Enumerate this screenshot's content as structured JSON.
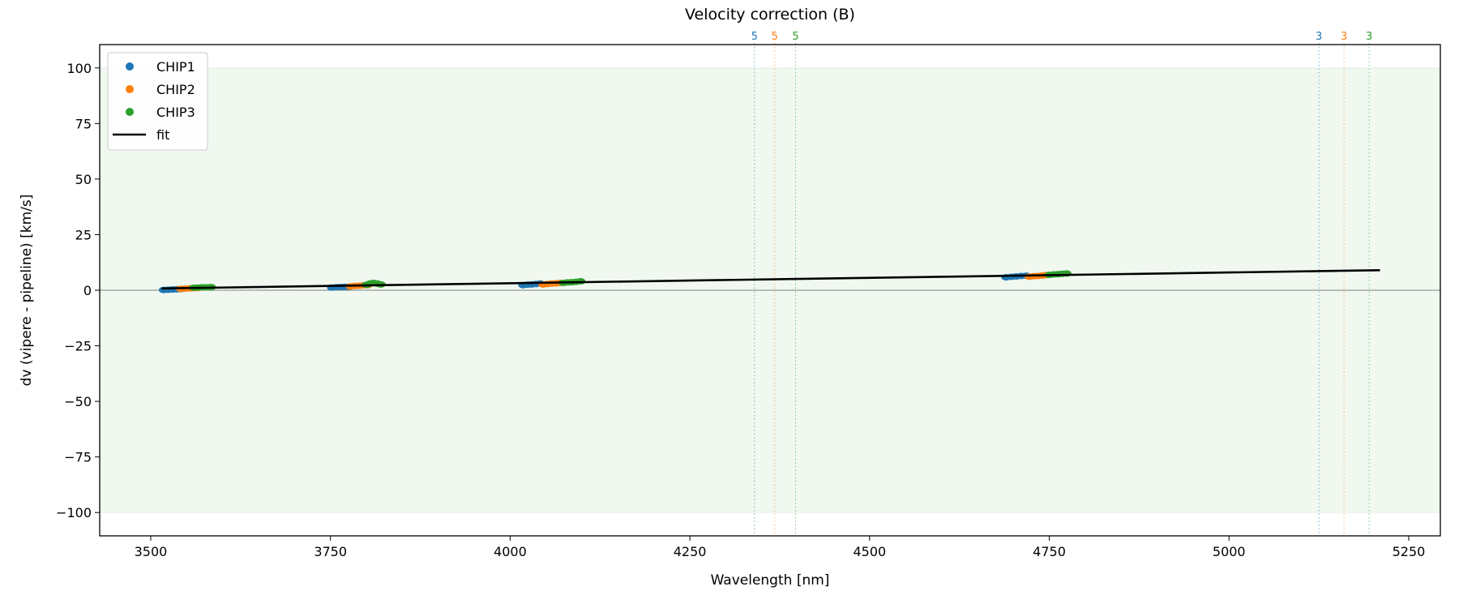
{
  "chart_data": {
    "type": "scatter",
    "title": "Velocity correction (B)",
    "xlabel": "Wavelength [nm]",
    "ylabel": "dv (vipere - pipeline) [km/s]",
    "xlim": [
      3429,
      5294
    ],
    "ylim": [
      -110.5,
      110.5
    ],
    "xticks": [
      3500,
      3750,
      4000,
      4250,
      4500,
      4750,
      5000,
      5250
    ],
    "yticks": [
      -100,
      -75,
      -50,
      -25,
      0,
      25,
      50,
      75,
      100
    ],
    "ytick_labels": [
      "−100",
      "−75",
      "−50",
      "−25",
      "0",
      "25",
      "50",
      "75",
      "100"
    ],
    "band": {
      "ymin": -100,
      "ymax": 100,
      "color": "#2ca02c"
    },
    "legend": {
      "placement": "top-left",
      "entries": [
        "CHIP1",
        "CHIP2",
        "CHIP3",
        "fit"
      ]
    },
    "series": [
      {
        "name": "CHIP1",
        "color": "#1f77b4",
        "x": [
          3518,
          3524,
          3530,
          3536,
          3542,
          3752,
          3758,
          3764,
          3770,
          3776,
          4018,
          4024,
          4030,
          4036,
          4042,
          4690,
          4697,
          4704,
          4711,
          4718
        ],
        "y": [
          0.1,
          0.2,
          0.3,
          0.4,
          0.5,
          1.2,
          1.3,
          1.4,
          1.5,
          1.6,
          2.3,
          2.5,
          2.6,
          2.8,
          3.0,
          5.8,
          6.0,
          6.2,
          6.4,
          6.5
        ]
      },
      {
        "name": "CHIP2",
        "color": "#ff7f0e",
        "x": [
          3542,
          3548,
          3554,
          3560,
          3566,
          3778,
          3784,
          3790,
          3796,
          3802,
          4046,
          4052,
          4058,
          4064,
          4070,
          4722,
          4728,
          4734,
          4740,
          4746
        ],
        "y": [
          0.6,
          0.7,
          0.8,
          0.9,
          1.0,
          1.7,
          1.9,
          2.0,
          2.2,
          2.3,
          2.6,
          2.8,
          3.0,
          3.1,
          3.3,
          6.1,
          6.3,
          6.4,
          6.6,
          6.8
        ]
      },
      {
        "name": "CHIP3",
        "color": "#2ca02c",
        "x": [
          3560,
          3566,
          3572,
          3578,
          3584,
          3800,
          3805,
          3810,
          3815,
          3820,
          4074,
          4080,
          4086,
          4092,
          4098,
          4750,
          4756,
          4762,
          4768,
          4774
        ],
        "y": [
          1.1,
          1.2,
          1.3,
          1.3,
          1.4,
          2.4,
          3.0,
          3.3,
          3.0,
          2.6,
          3.3,
          3.5,
          3.6,
          3.8,
          4.0,
          6.9,
          7.1,
          7.2,
          7.4,
          7.5
        ]
      }
    ],
    "fit": {
      "name": "fit",
      "color": "#000000",
      "x": [
        3515,
        5210
      ],
      "y": [
        0.8,
        9.0
      ]
    },
    "vlines": [
      {
        "x": 4340,
        "label": "5",
        "color": "#1f77b4"
      },
      {
        "x": 4368,
        "label": "5",
        "color": "#ff7f0e"
      },
      {
        "x": 4397,
        "label": "5",
        "color": "#2ca02c"
      },
      {
        "x": 5125,
        "label": "3",
        "color": "#1f77b4"
      },
      {
        "x": 5160,
        "label": "3",
        "color": "#ff7f0e"
      },
      {
        "x": 5195,
        "label": "3",
        "color": "#2ca02c"
      }
    ]
  }
}
